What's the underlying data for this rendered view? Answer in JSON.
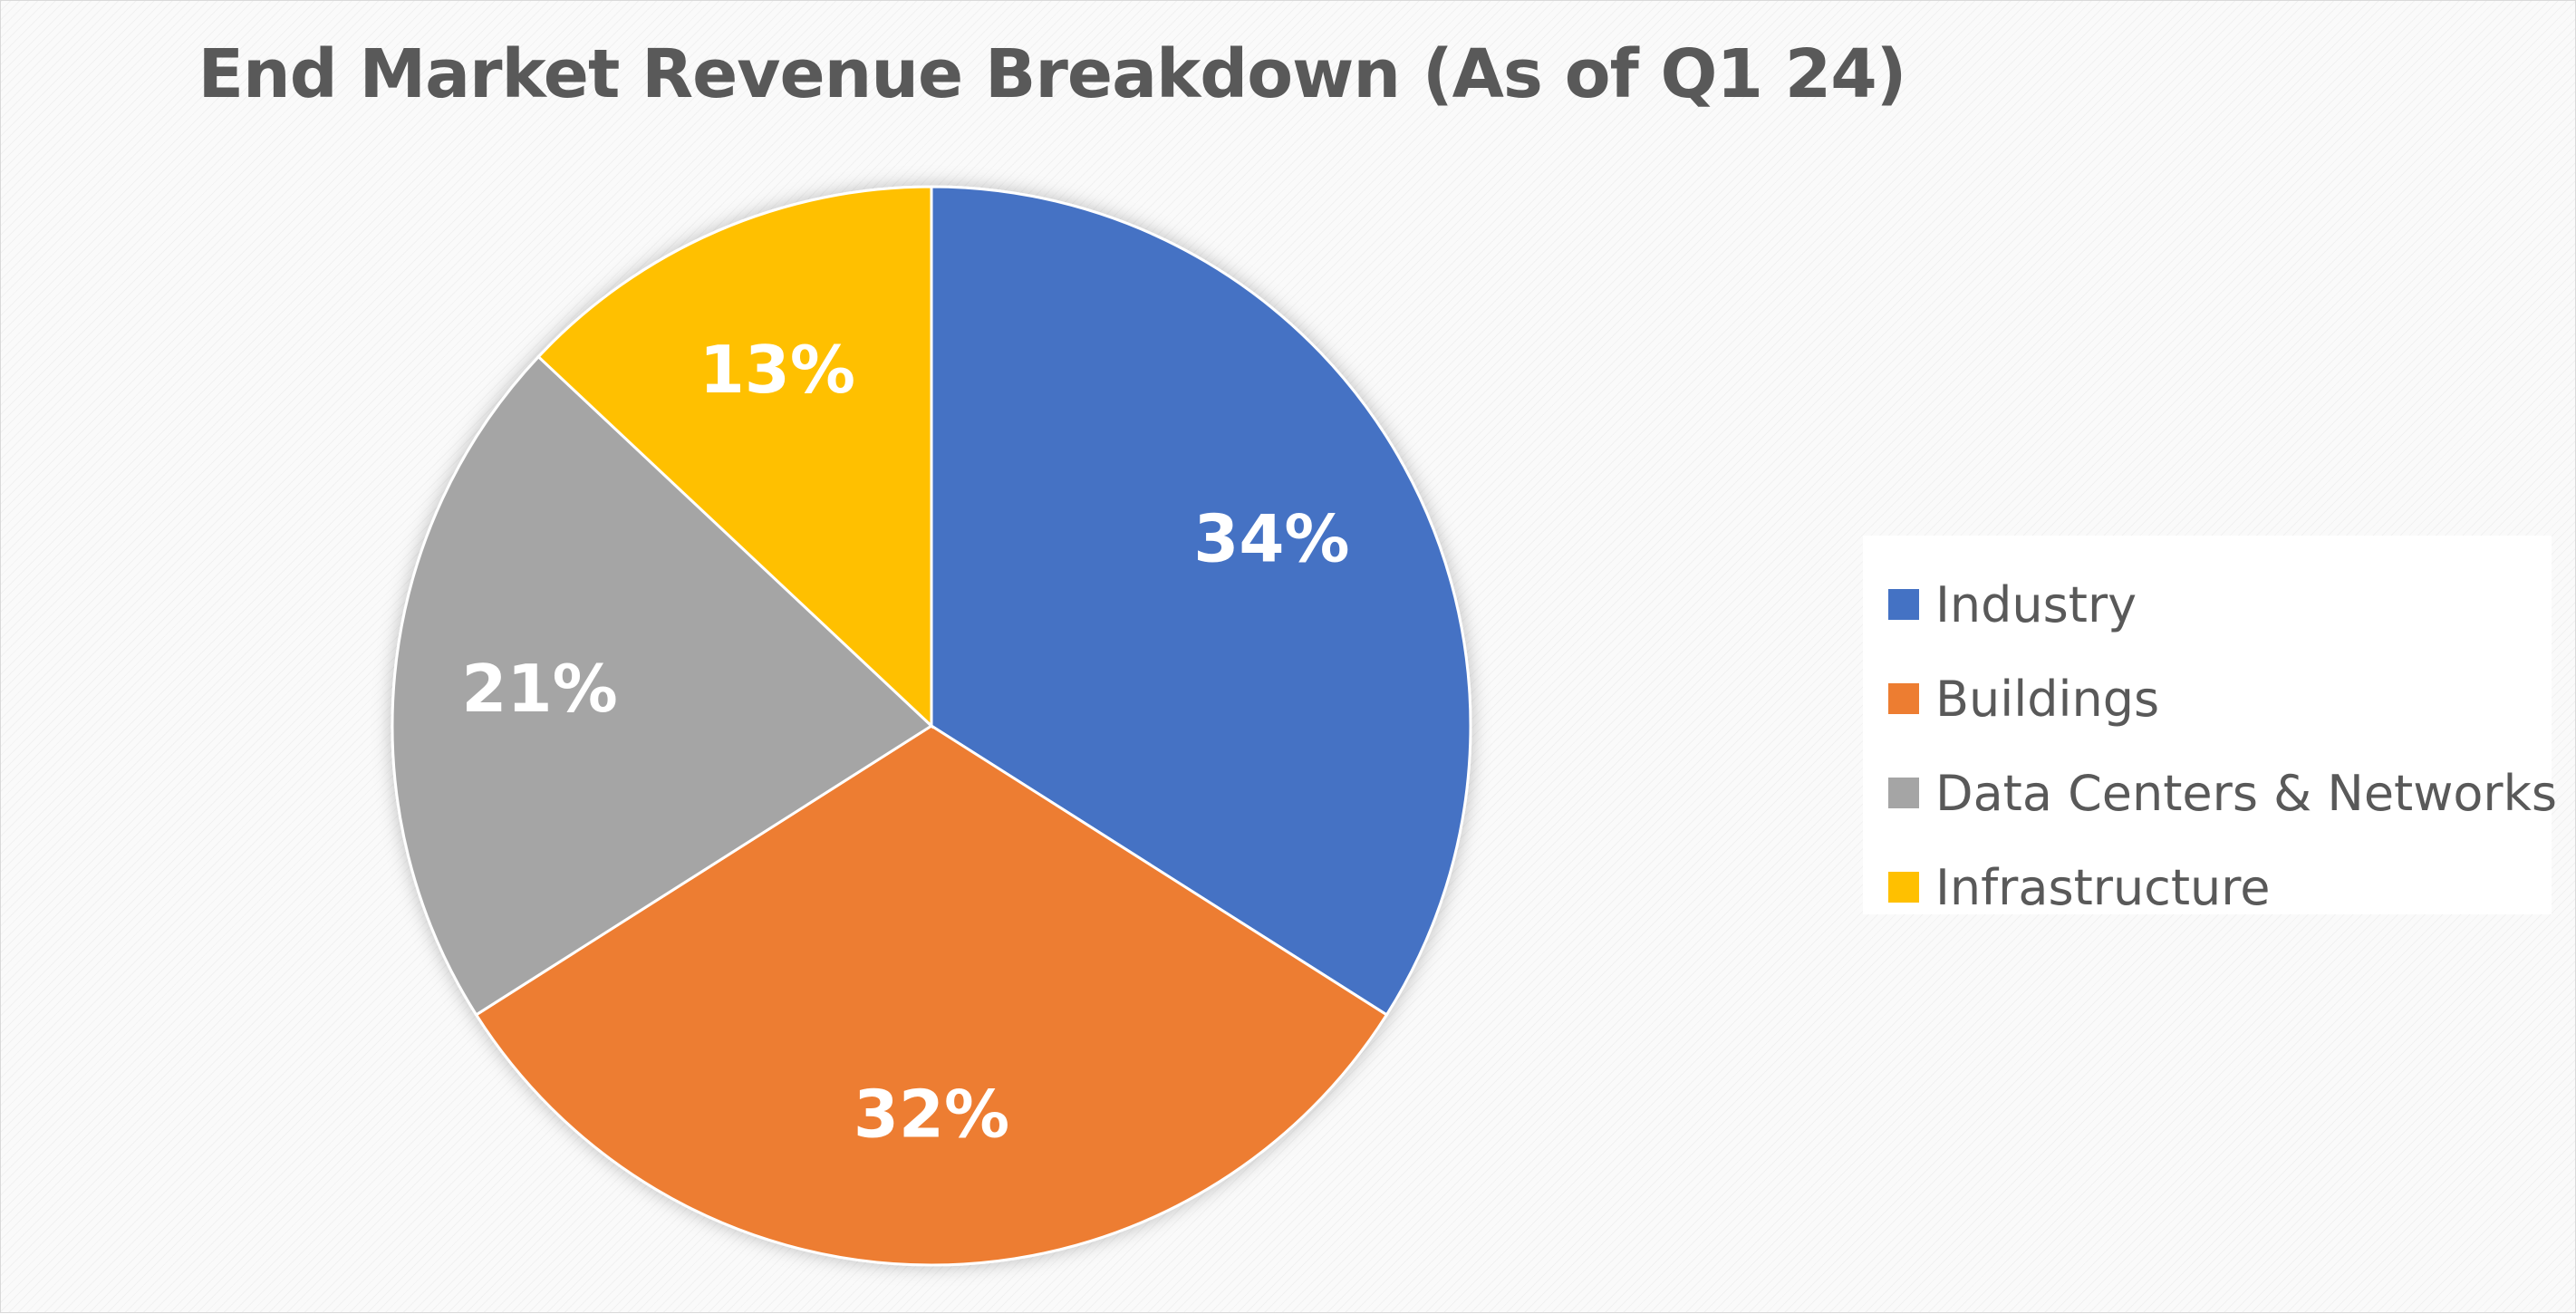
{
  "chart_data": {
    "type": "pie",
    "title": "End Market Revenue Breakdown (As of Q1 24)",
    "legend_position": "right",
    "categories": [
      "Industry",
      "Buildings",
      "Data Centers & Networks",
      "Infrastructure"
    ],
    "values": [
      34,
      32,
      21,
      13
    ],
    "data_labels": [
      "34%",
      "32%",
      "21%",
      "13%"
    ],
    "colors": [
      "#4472C4",
      "#ED7D31",
      "#A5A5A5",
      "#FFC000"
    ]
  }
}
